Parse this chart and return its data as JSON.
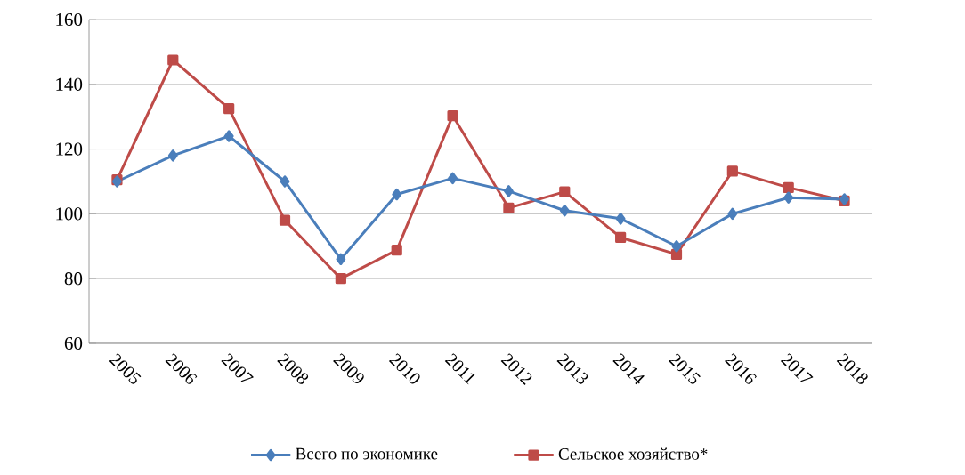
{
  "chart_data": {
    "type": "line",
    "categories": [
      "2005",
      "2006",
      "2007",
      "2008",
      "2009",
      "2010",
      "2011",
      "2012",
      "2013",
      "2014",
      "2015",
      "2016",
      "2017",
      "2018"
    ],
    "series": [
      {
        "name": "Всего по экономике",
        "color": "#4a7ebb",
        "marker": "diamond",
        "values": [
          110,
          118,
          124,
          110,
          86,
          106,
          111,
          107,
          101,
          98.5,
          90,
          100,
          105,
          104.5
        ]
      },
      {
        "name": "Сельское хозяйство*",
        "color": "#be4b48",
        "marker": "square",
        "values": [
          110.5,
          147.5,
          132.5,
          98,
          80,
          88.8,
          130.3,
          101.8,
          106.8,
          92.7,
          87.5,
          113.2,
          108.1,
          104
        ]
      }
    ],
    "ylim": [
      60,
      160
    ],
    "yticks": [
      60,
      80,
      100,
      120,
      140,
      160
    ],
    "grid": "y",
    "legend": "bottom"
  }
}
